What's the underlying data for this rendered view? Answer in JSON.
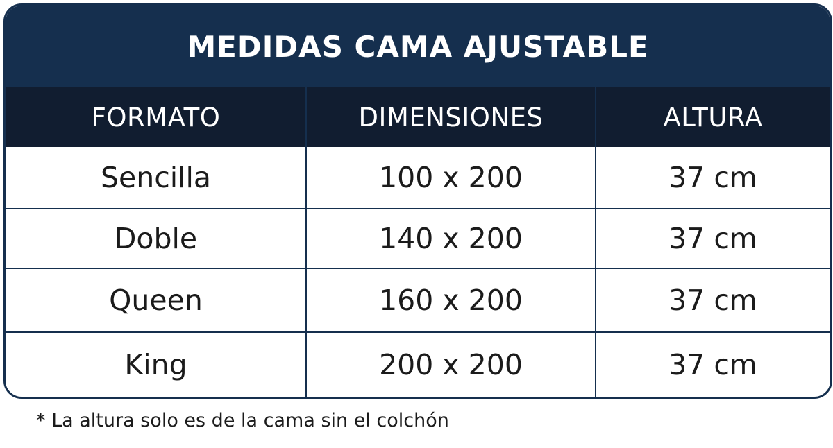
{
  "title": "MEDIDAS CAMA AJUSTABLE",
  "columns": [
    "FORMATO",
    "DIMENSIONES",
    "ALTURA"
  ],
  "rows": [
    [
      "Sencilla",
      "100 x 200",
      "37 cm"
    ],
    [
      "Doble",
      "140 x 200",
      "37 cm"
    ],
    [
      "Queen",
      "160 x 200",
      "37 cm"
    ],
    [
      "King",
      "200 x 200",
      "37 cm"
    ]
  ],
  "footnote": "* La altura solo es de la cama sin el colchón",
  "colors": {
    "title_background": "#152f4e",
    "header_background": "#111d30",
    "border": "#152f4e",
    "text": "#1b1b1b"
  }
}
